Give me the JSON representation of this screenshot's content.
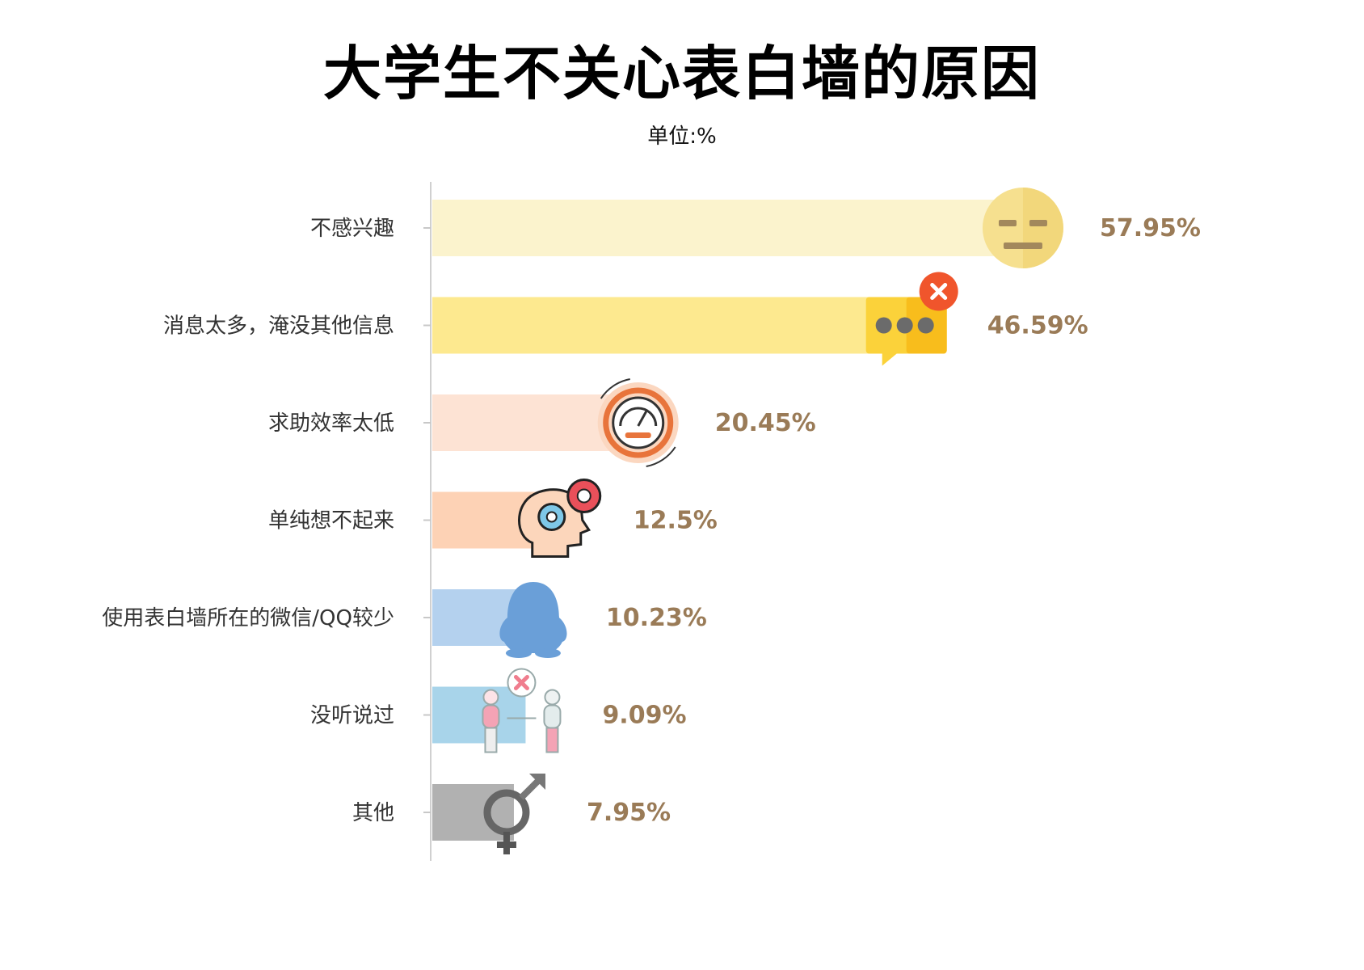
{
  "chart_data": {
    "type": "bar",
    "orientation": "horizontal",
    "title": "大学生不关心表白墙的原因",
    "subtitle": "单位:%",
    "categories": [
      "不感兴趣",
      "消息太多，淹没其他信息",
      "求助效率太低",
      "单纯想不起来",
      "使用表白墙所在的微信/QQ较少",
      "没听说过",
      "其他"
    ],
    "values": [
      57.95,
      46.59,
      20.45,
      12.5,
      10.23,
      9.09,
      7.95
    ],
    "value_labels": [
      "57.95%",
      "46.59%",
      "20.45%",
      "12.5%",
      "10.23%",
      "9.09%",
      "7.95%"
    ],
    "bar_colors": [
      "#fbf3cd",
      "#fde98f",
      "#fde3d4",
      "#fdd2b5",
      "#b4d1ee",
      "#a8d4ea",
      "#b1b1b1"
    ],
    "icons": [
      "neutral-face-icon",
      "chat-bubble-error-icon",
      "speedometer-icon",
      "head-gears-icon",
      "qq-penguin-icon",
      "two-people-no-talk-icon",
      "gender-symbol-icon"
    ],
    "xlim": [
      0,
      60
    ],
    "grid": false,
    "legend": "none"
  }
}
